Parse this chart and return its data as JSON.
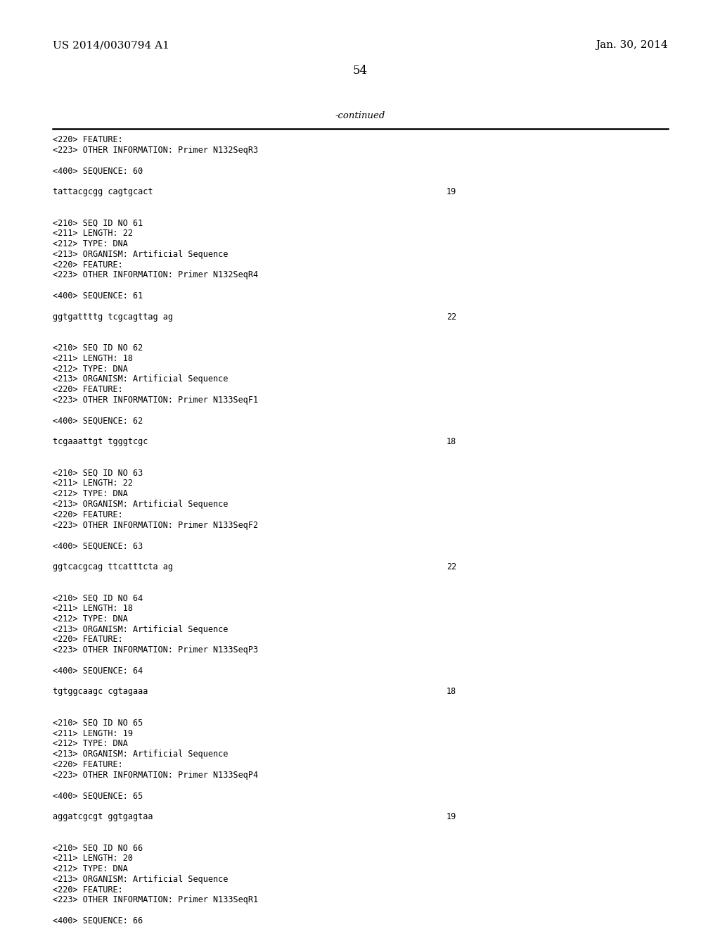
{
  "background_color": "#ffffff",
  "header_left": "US 2014/0030794 A1",
  "header_right": "Jan. 30, 2014",
  "page_number": "54",
  "continued_label": "-continued",
  "content_lines": [
    {
      "text": "<220> FEATURE:",
      "num": null
    },
    {
      "text": "<223> OTHER INFORMATION: Primer N132SeqR3",
      "num": null
    },
    {
      "text": "",
      "num": null
    },
    {
      "text": "<400> SEQUENCE: 60",
      "num": null
    },
    {
      "text": "",
      "num": null
    },
    {
      "text": "tattacgcgg cagtgcact",
      "num": "19"
    },
    {
      "text": "",
      "num": null
    },
    {
      "text": "",
      "num": null
    },
    {
      "text": "<210> SEQ ID NO 61",
      "num": null
    },
    {
      "text": "<211> LENGTH: 22",
      "num": null
    },
    {
      "text": "<212> TYPE: DNA",
      "num": null
    },
    {
      "text": "<213> ORGANISM: Artificial Sequence",
      "num": null
    },
    {
      "text": "<220> FEATURE:",
      "num": null
    },
    {
      "text": "<223> OTHER INFORMATION: Primer N132SeqR4",
      "num": null
    },
    {
      "text": "",
      "num": null
    },
    {
      "text": "<400> SEQUENCE: 61",
      "num": null
    },
    {
      "text": "",
      "num": null
    },
    {
      "text": "ggtgattttg tcgcagttag ag",
      "num": "22"
    },
    {
      "text": "",
      "num": null
    },
    {
      "text": "",
      "num": null
    },
    {
      "text": "<210> SEQ ID NO 62",
      "num": null
    },
    {
      "text": "<211> LENGTH: 18",
      "num": null
    },
    {
      "text": "<212> TYPE: DNA",
      "num": null
    },
    {
      "text": "<213> ORGANISM: Artificial Sequence",
      "num": null
    },
    {
      "text": "<220> FEATURE:",
      "num": null
    },
    {
      "text": "<223> OTHER INFORMATION: Primer N133SeqF1",
      "num": null
    },
    {
      "text": "",
      "num": null
    },
    {
      "text": "<400> SEQUENCE: 62",
      "num": null
    },
    {
      "text": "",
      "num": null
    },
    {
      "text": "tcgaaattgt tgggtcgc",
      "num": "18"
    },
    {
      "text": "",
      "num": null
    },
    {
      "text": "",
      "num": null
    },
    {
      "text": "<210> SEQ ID NO 63",
      "num": null
    },
    {
      "text": "<211> LENGTH: 22",
      "num": null
    },
    {
      "text": "<212> TYPE: DNA",
      "num": null
    },
    {
      "text": "<213> ORGANISM: Artificial Sequence",
      "num": null
    },
    {
      "text": "<220> FEATURE:",
      "num": null
    },
    {
      "text": "<223> OTHER INFORMATION: Primer N133SeqF2",
      "num": null
    },
    {
      "text": "",
      "num": null
    },
    {
      "text": "<400> SEQUENCE: 63",
      "num": null
    },
    {
      "text": "",
      "num": null
    },
    {
      "text": "ggtcacgcag ttcatttcta ag",
      "num": "22"
    },
    {
      "text": "",
      "num": null
    },
    {
      "text": "",
      "num": null
    },
    {
      "text": "<210> SEQ ID NO 64",
      "num": null
    },
    {
      "text": "<211> LENGTH: 18",
      "num": null
    },
    {
      "text": "<212> TYPE: DNA",
      "num": null
    },
    {
      "text": "<213> ORGANISM: Artificial Sequence",
      "num": null
    },
    {
      "text": "<220> FEATURE:",
      "num": null
    },
    {
      "text": "<223> OTHER INFORMATION: Primer N133SeqP3",
      "num": null
    },
    {
      "text": "",
      "num": null
    },
    {
      "text": "<400> SEQUENCE: 64",
      "num": null
    },
    {
      "text": "",
      "num": null
    },
    {
      "text": "tgtggcaagc cgtagaaa",
      "num": "18"
    },
    {
      "text": "",
      "num": null
    },
    {
      "text": "",
      "num": null
    },
    {
      "text": "<210> SEQ ID NO 65",
      "num": null
    },
    {
      "text": "<211> LENGTH: 19",
      "num": null
    },
    {
      "text": "<212> TYPE: DNA",
      "num": null
    },
    {
      "text": "<213> ORGANISM: Artificial Sequence",
      "num": null
    },
    {
      "text": "<220> FEATURE:",
      "num": null
    },
    {
      "text": "<223> OTHER INFORMATION: Primer N133SeqP4",
      "num": null
    },
    {
      "text": "",
      "num": null
    },
    {
      "text": "<400> SEQUENCE: 65",
      "num": null
    },
    {
      "text": "",
      "num": null
    },
    {
      "text": "aggatcgcgt ggtgagtaa",
      "num": "19"
    },
    {
      "text": "",
      "num": null
    },
    {
      "text": "",
      "num": null
    },
    {
      "text": "<210> SEQ ID NO 66",
      "num": null
    },
    {
      "text": "<211> LENGTH: 20",
      "num": null
    },
    {
      "text": "<212> TYPE: DNA",
      "num": null
    },
    {
      "text": "<213> ORGANISM: Artificial Sequence",
      "num": null
    },
    {
      "text": "<220> FEATURE:",
      "num": null
    },
    {
      "text": "<223> OTHER INFORMATION: Primer N133SeqR1",
      "num": null
    },
    {
      "text": "",
      "num": null
    },
    {
      "text": "<400> SEQUENCE: 66",
      "num": null
    }
  ]
}
